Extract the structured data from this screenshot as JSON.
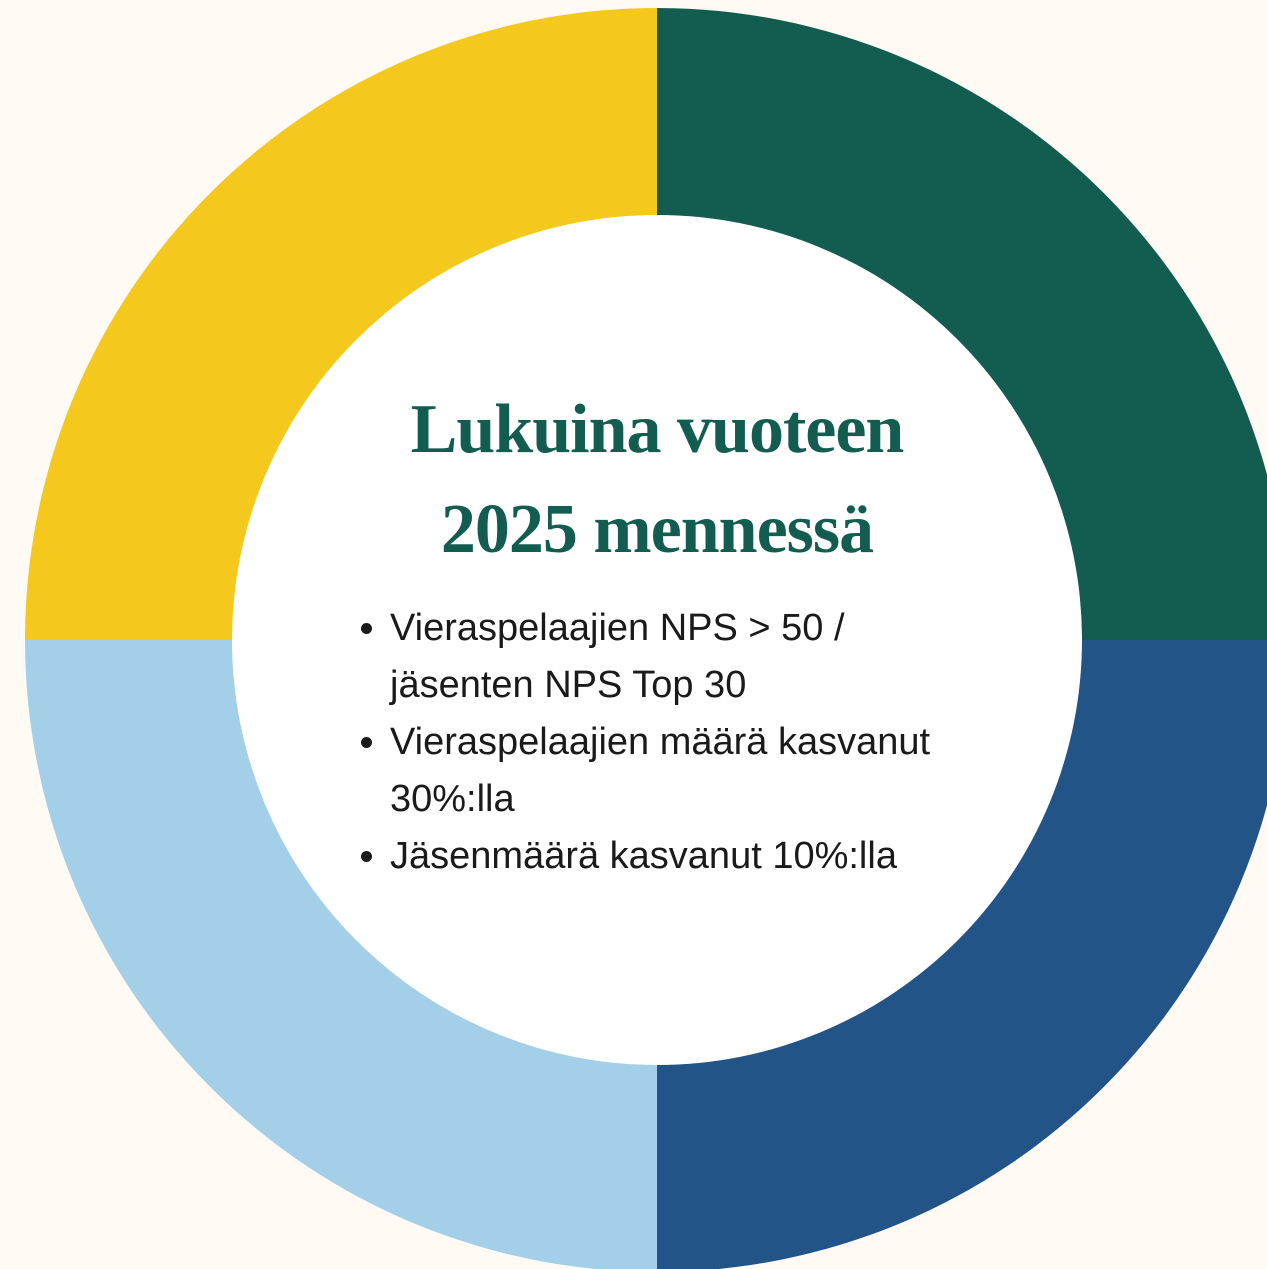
{
  "title": "Lukuina vuoteen 2025 mennessä",
  "items": [
    "Vieraspelaajien NPS > 50 / jäsenten NPS Top 30",
    "Vieraspelaajien määrä kasvanut 30%:lla",
    "Jäsenmäärä kasvanut 10%:lla"
  ]
}
